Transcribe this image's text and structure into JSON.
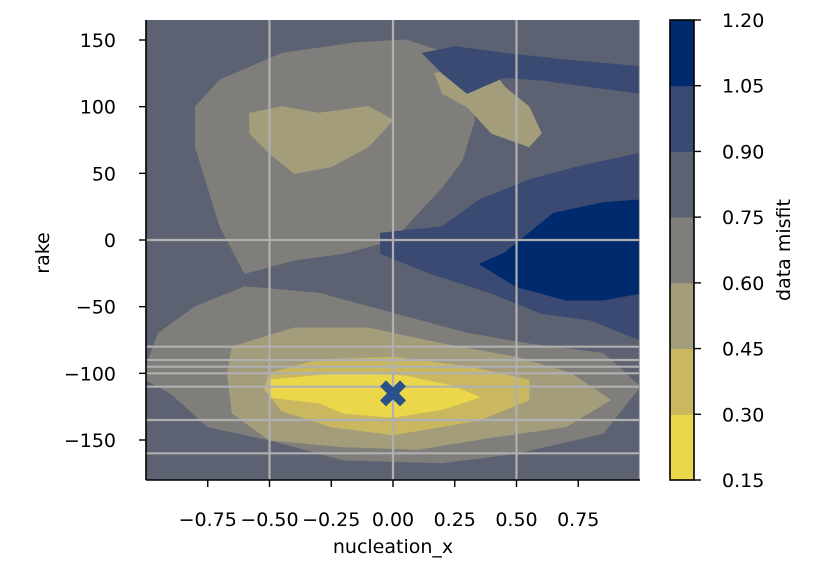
{
  "chart_data": {
    "type": "heatmap",
    "subtype": "filled-contour",
    "xlabel": "nucleation_x",
    "ylabel": "rake",
    "xlim": [
      -1.0,
      1.0
    ],
    "ylim": [
      -180,
      165
    ],
    "x_ticks": [
      -0.75,
      -0.5,
      -0.25,
      0.0,
      0.25,
      0.5,
      0.75
    ],
    "x_tick_labels": [
      "−0.75",
      "−0.50",
      "−0.25",
      "0.00",
      "0.25",
      "0.50",
      "0.75"
    ],
    "y_ticks": [
      -150,
      -100,
      -50,
      0,
      50,
      100,
      150
    ],
    "y_tick_labels": [
      "−150",
      "−100",
      "−50",
      "0",
      "50",
      "100",
      "150"
    ],
    "grid": true,
    "grid_x": [
      -0.5,
      0.0,
      0.5,
      1.0
    ],
    "grid_y": [
      -160,
      -135,
      -110,
      -100,
      -95,
      -90,
      -80,
      0
    ],
    "colorbar": {
      "label": "data misfit",
      "levels": [
        0.15,
        0.3,
        0.45,
        0.6,
        0.75,
        0.9,
        1.05,
        1.2
      ],
      "level_labels": [
        "0.15",
        "0.30",
        "0.45",
        "0.60",
        "0.75",
        "0.90",
        "1.05",
        "1.20"
      ],
      "colors": [
        "#ecd64a",
        "#c9b85f",
        "#a39d7c",
        "#7f7e7a",
        "#5d6272",
        "#3a4a72",
        "#002a6e"
      ]
    },
    "regions": [
      {
        "level": 4,
        "points": [
          [
            -1.0,
            -180
          ],
          [
            1.0,
            -180
          ],
          [
            1.0,
            165
          ],
          [
            -1.0,
            165
          ]
        ]
      },
      {
        "level": 3,
        "points": [
          [
            -0.8,
            -50
          ],
          [
            -0.6,
            -35
          ],
          [
            -0.3,
            -40
          ],
          [
            0.0,
            -55
          ],
          [
            0.3,
            -70
          ],
          [
            0.55,
            -78
          ],
          [
            0.85,
            -85
          ],
          [
            1.0,
            -110
          ],
          [
            0.85,
            -145
          ],
          [
            0.5,
            -160
          ],
          [
            0.2,
            -167
          ],
          [
            -0.2,
            -165
          ],
          [
            -0.5,
            -150
          ],
          [
            -0.75,
            -140
          ],
          [
            -0.9,
            -115
          ],
          [
            -1.0,
            -105
          ],
          [
            -1.0,
            -95
          ],
          [
            -0.95,
            -70
          ]
        ]
      },
      {
        "level": 2,
        "points": [
          [
            -0.65,
            -80
          ],
          [
            -0.4,
            -66
          ],
          [
            -0.1,
            -66
          ],
          [
            0.2,
            -78
          ],
          [
            0.5,
            -88
          ],
          [
            0.72,
            -100
          ],
          [
            0.88,
            -120
          ],
          [
            0.7,
            -140
          ],
          [
            0.4,
            -148
          ],
          [
            0.1,
            -157
          ],
          [
            -0.2,
            -155
          ],
          [
            -0.5,
            -150
          ],
          [
            -0.65,
            -130
          ],
          [
            -0.67,
            -100
          ]
        ]
      },
      {
        "level": 1,
        "points": [
          [
            -0.5,
            -100
          ],
          [
            -0.3,
            -90
          ],
          [
            0.0,
            -88
          ],
          [
            0.3,
            -95
          ],
          [
            0.55,
            -105
          ],
          [
            0.55,
            -120
          ],
          [
            0.35,
            -135
          ],
          [
            0.0,
            -146
          ],
          [
            -0.25,
            -140
          ],
          [
            -0.45,
            -128
          ],
          [
            -0.52,
            -112
          ]
        ]
      },
      {
        "level": 0,
        "points": [
          [
            -0.5,
            -105
          ],
          [
            -0.2,
            -100
          ],
          [
            0.05,
            -102
          ],
          [
            0.25,
            -110
          ],
          [
            0.35,
            -118
          ],
          [
            0.2,
            -127
          ],
          [
            0.0,
            -133
          ],
          [
            -0.2,
            -130
          ],
          [
            -0.3,
            -122
          ],
          [
            -0.5,
            -118
          ]
        ]
      },
      {
        "level": 3,
        "points": [
          [
            -0.6,
            -25
          ],
          [
            -0.4,
            -15
          ],
          [
            -0.2,
            -10
          ],
          [
            0.0,
            0
          ],
          [
            0.1,
            20
          ],
          [
            0.2,
            40
          ],
          [
            0.28,
            60
          ],
          [
            0.33,
            90
          ],
          [
            0.3,
            115
          ],
          [
            0.22,
            140
          ],
          [
            0.05,
            150
          ],
          [
            -0.15,
            148
          ],
          [
            -0.45,
            140
          ],
          [
            -0.7,
            120
          ],
          [
            -0.8,
            100
          ],
          [
            -0.8,
            70
          ],
          [
            -0.75,
            40
          ],
          [
            -0.7,
            10
          ]
        ]
      },
      {
        "level": 2,
        "points": [
          [
            -0.58,
            95
          ],
          [
            -0.45,
            100
          ],
          [
            -0.3,
            95
          ],
          [
            -0.1,
            100
          ],
          [
            0.0,
            90
          ],
          [
            -0.1,
            70
          ],
          [
            -0.25,
            55
          ],
          [
            -0.4,
            50
          ],
          [
            -0.5,
            65
          ],
          [
            -0.58,
            80
          ]
        ]
      },
      {
        "level": 2,
        "points": [
          [
            0.17,
            125
          ],
          [
            0.25,
            127
          ],
          [
            0.35,
            133
          ],
          [
            0.4,
            128
          ],
          [
            0.45,
            115
          ],
          [
            0.55,
            100
          ],
          [
            0.6,
            80
          ],
          [
            0.55,
            70
          ],
          [
            0.4,
            80
          ],
          [
            0.3,
            100
          ],
          [
            0.2,
            110
          ]
        ]
      },
      {
        "level": 5,
        "points": [
          [
            1.0,
            65
          ],
          [
            0.75,
            55
          ],
          [
            0.55,
            45
          ],
          [
            0.35,
            30
          ],
          [
            0.2,
            10
          ],
          [
            -0.05,
            5
          ],
          [
            -0.05,
            -10
          ],
          [
            0.15,
            -25
          ],
          [
            0.4,
            -40
          ],
          [
            0.6,
            -55
          ],
          [
            0.8,
            -60
          ],
          [
            1.0,
            -75
          ]
        ]
      },
      {
        "level": 6,
        "points": [
          [
            1.0,
            30
          ],
          [
            0.85,
            28
          ],
          [
            0.65,
            20
          ],
          [
            0.55,
            5
          ],
          [
            0.45,
            -10
          ],
          [
            0.35,
            -18
          ],
          [
            0.5,
            -35
          ],
          [
            0.7,
            -45
          ],
          [
            0.85,
            -45
          ],
          [
            1.0,
            -40
          ]
        ]
      },
      {
        "level": 5,
        "points": [
          [
            0.12,
            140
          ],
          [
            0.25,
            145
          ],
          [
            0.45,
            140
          ],
          [
            0.7,
            135
          ],
          [
            1.0,
            130
          ],
          [
            1.0,
            110
          ],
          [
            0.8,
            115
          ],
          [
            0.6,
            120
          ],
          [
            0.45,
            122
          ],
          [
            0.3,
            110
          ],
          [
            0.2,
            125
          ]
        ]
      }
    ],
    "markers": [
      {
        "x": 0.0,
        "y": -115,
        "symbol": "X",
        "color": "#2a5189"
      }
    ]
  }
}
